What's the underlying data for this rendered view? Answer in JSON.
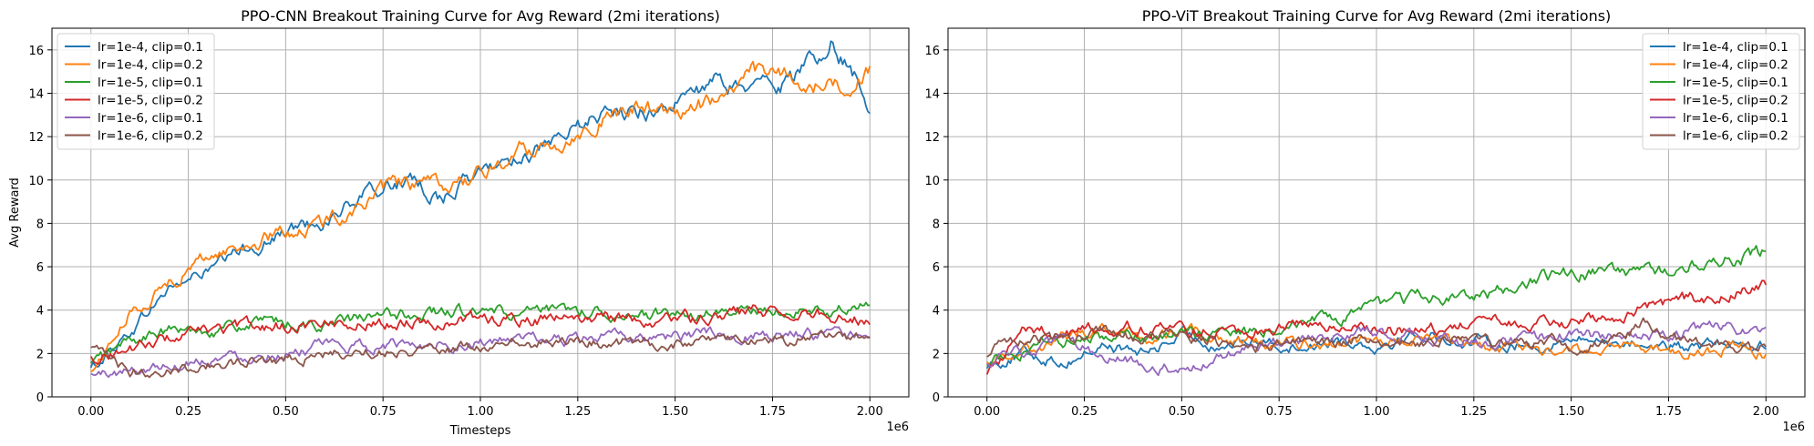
{
  "chart_data": [
    {
      "type": "line",
      "title": "PPO-CNN Breakout Training Curve for Avg Reward (2mi iterations)",
      "xlabel": "Timesteps",
      "ylabel": "Avg Reward",
      "x_offset_text": "1e6",
      "xlim": [
        -0.1,
        2.1
      ],
      "ylim": [
        0,
        17
      ],
      "x_ticks": [
        0.0,
        0.25,
        0.5,
        0.75,
        1.0,
        1.25,
        1.5,
        1.75,
        2.0
      ],
      "x_tick_labels": [
        "0.00",
        "0.25",
        "0.50",
        "0.75",
        "1.00",
        "1.25",
        "1.50",
        "1.75",
        "2.00"
      ],
      "y_ticks": [
        0,
        2,
        4,
        6,
        8,
        10,
        12,
        14,
        16
      ],
      "y_tick_labels": [
        "0",
        "2",
        "4",
        "6",
        "8",
        "10",
        "12",
        "14",
        "16"
      ],
      "grid": true,
      "legend_position": "top-left",
      "x": [
        0.0,
        0.1,
        0.2,
        0.3,
        0.4,
        0.5,
        0.6,
        0.7,
        0.8,
        0.9,
        1.0,
        1.1,
        1.2,
        1.3,
        1.4,
        1.5,
        1.6,
        1.7,
        1.8,
        1.9,
        2.0
      ],
      "series": [
        {
          "name": "lr=1e-4, clip=0.1",
          "color": "#1f77b4",
          "values": [
            1.3,
            3.0,
            5.0,
            5.8,
            6.8,
            7.6,
            8.2,
            9.2,
            10.0,
            9.2,
            10.3,
            11.2,
            11.6,
            13.0,
            13.1,
            13.5,
            14.4,
            14.3,
            14.6,
            16.4,
            13.7
          ]
        },
        {
          "name": "lr=1e-4, clip=0.2",
          "color": "#ff7f0e",
          "values": [
            1.1,
            3.8,
            5.3,
            6.5,
            7.0,
            7.6,
            8.0,
            9.0,
            9.8,
            9.6,
            10.2,
            11.3,
            11.7,
            12.8,
            13.3,
            13.2,
            13.6,
            15.0,
            14.7,
            14.3,
            15.0
          ]
        },
        {
          "name": "lr=1e-5, clip=0.1",
          "color": "#2ca02c",
          "values": [
            1.5,
            2.6,
            3.0,
            3.1,
            3.3,
            3.4,
            3.3,
            3.6,
            3.8,
            3.9,
            3.9,
            3.8,
            3.9,
            4.0,
            3.8,
            3.7,
            3.8,
            4.0,
            3.9,
            4.0,
            4.2
          ]
        },
        {
          "name": "lr=1e-5, clip=0.2",
          "color": "#d62728",
          "values": [
            1.8,
            2.2,
            2.7,
            3.0,
            3.2,
            3.3,
            3.4,
            3.4,
            3.5,
            3.5,
            3.6,
            3.5,
            3.6,
            3.7,
            3.6,
            3.6,
            3.7,
            3.9,
            3.9,
            3.8,
            3.6
          ]
        },
        {
          "name": "lr=1e-6, clip=0.1",
          "color": "#9467bd",
          "values": [
            1.0,
            1.2,
            1.5,
            1.8,
            1.9,
            2.1,
            2.3,
            2.3,
            2.4,
            2.5,
            2.5,
            2.6,
            2.6,
            2.7,
            2.7,
            2.8,
            2.8,
            2.9,
            2.9,
            2.8,
            2.6
          ]
        },
        {
          "name": "lr=1e-6, clip=0.2",
          "color": "#8c564b",
          "values": [
            2.2,
            1.1,
            1.3,
            1.5,
            1.6,
            1.8,
            1.9,
            2.1,
            2.2,
            2.3,
            2.3,
            2.4,
            2.5,
            2.5,
            2.5,
            2.5,
            2.6,
            2.6,
            2.6,
            2.7,
            2.8
          ]
        }
      ]
    },
    {
      "type": "line",
      "title": "PPO-ViT Breakout Training Curve for Avg Reward (2mi iterations)",
      "xlabel": "",
      "ylabel": "",
      "x_offset_text": "1e6",
      "xlim": [
        -0.1,
        2.1
      ],
      "ylim": [
        0,
        17
      ],
      "x_ticks": [
        0.0,
        0.25,
        0.5,
        0.75,
        1.0,
        1.25,
        1.5,
        1.75,
        2.0
      ],
      "x_tick_labels": [
        "0.00",
        "0.25",
        "0.50",
        "0.75",
        "1.00",
        "1.25",
        "1.50",
        "1.75",
        "2.00"
      ],
      "y_ticks": [
        0,
        2,
        4,
        6,
        8,
        10,
        12,
        14,
        16
      ],
      "y_tick_labels": [
        "0",
        "2",
        "4",
        "6",
        "8",
        "10",
        "12",
        "14",
        "16"
      ],
      "grid": true,
      "legend_position": "top-right",
      "x": [
        0.0,
        0.1,
        0.2,
        0.3,
        0.4,
        0.5,
        0.6,
        0.7,
        0.8,
        0.9,
        1.0,
        1.1,
        1.2,
        1.3,
        1.4,
        1.5,
        1.6,
        1.7,
        1.8,
        1.9,
        2.0
      ],
      "series": [
        {
          "name": "lr=1e-4, clip=0.1",
          "color": "#1f77b4",
          "values": [
            1.5,
            2.0,
            1.6,
            2.4,
            2.0,
            2.8,
            2.4,
            2.6,
            2.3,
            2.7,
            2.4,
            2.9,
            2.6,
            2.5,
            2.3,
            2.6,
            2.6,
            2.4,
            2.2,
            2.5,
            2.4
          ]
        },
        {
          "name": "lr=1e-4, clip=0.2",
          "color": "#ff7f0e",
          "values": [
            1.8,
            2.3,
            2.7,
            3.3,
            2.6,
            3.0,
            2.8,
            2.5,
            2.4,
            2.6,
            2.5,
            2.7,
            2.4,
            2.2,
            2.3,
            2.0,
            2.5,
            2.2,
            2.0,
            2.3,
            2.0
          ]
        },
        {
          "name": "lr=1e-5, clip=0.1",
          "color": "#2ca02c",
          "values": [
            1.6,
            2.2,
            2.6,
            2.8,
            2.6,
            2.9,
            2.9,
            3.0,
            3.5,
            3.5,
            4.1,
            4.6,
            4.6,
            4.7,
            5.4,
            5.8,
            5.6,
            5.7,
            6.1,
            6.3,
            6.7
          ]
        },
        {
          "name": "lr=1e-5, clip=0.2",
          "color": "#d62728",
          "values": [
            1.2,
            3.1,
            2.9,
            3.3,
            3.2,
            3.0,
            3.2,
            3.1,
            3.3,
            3.2,
            3.2,
            3.1,
            3.3,
            3.4,
            3.3,
            3.4,
            3.8,
            4.2,
            4.5,
            4.8,
            5.3
          ]
        },
        {
          "name": "lr=1e-6, clip=0.1",
          "color": "#9467bd",
          "values": [
            1.7,
            2.1,
            2.4,
            2.0,
            1.6,
            1.2,
            1.8,
            2.3,
            2.6,
            2.8,
            3.0,
            2.7,
            2.6,
            2.5,
            2.7,
            2.9,
            2.8,
            2.9,
            3.0,
            3.2,
            3.1
          ]
        },
        {
          "name": "lr=1e-6, clip=0.2",
          "color": "#8c564b",
          "values": [
            2.0,
            2.9,
            2.6,
            3.0,
            2.7,
            2.8,
            2.5,
            2.4,
            2.7,
            2.6,
            2.6,
            2.4,
            2.6,
            2.4,
            2.5,
            2.4,
            2.6,
            3.4,
            2.4,
            2.4,
            2.3
          ]
        }
      ]
    }
  ]
}
